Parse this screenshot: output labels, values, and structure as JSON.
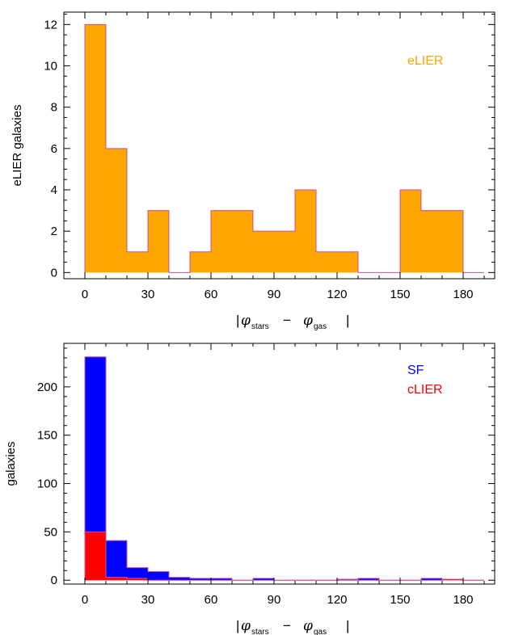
{
  "chart_data": [
    {
      "type": "bar",
      "title": "",
      "ylabel": "eLIER galaxies",
      "xlabel": {
        "bar_left": "|",
        "phi1": "φ",
        "sub1": "stars",
        "minus": "−",
        "phi2": "φ",
        "sub2": "gas",
        "bar_right": "|"
      },
      "xlim": [
        -10,
        195
      ],
      "ylim": [
        -0.3,
        12.6
      ],
      "xticks": [
        0,
        30,
        60,
        90,
        120,
        150,
        180
      ],
      "yticks": [
        0,
        2,
        4,
        6,
        8,
        10,
        12
      ],
      "bin_edges": [
        0,
        10,
        20,
        30,
        40,
        50,
        60,
        70,
        80,
        90,
        100,
        110,
        120,
        130,
        140,
        150,
        160,
        170,
        180,
        190
      ],
      "legend_position": "top-right",
      "series": [
        {
          "name": "eLIER",
          "fill": "#FFA500",
          "stroke": "#C8509A",
          "values": [
            12,
            6,
            1,
            3,
            0,
            1,
            3,
            3,
            2,
            2,
            4,
            1,
            1,
            0,
            0,
            4,
            3,
            3,
            0
          ]
        }
      ]
    },
    {
      "type": "bar",
      "title": "",
      "ylabel": "galaxies",
      "xlabel": {
        "bar_left": "|",
        "phi1": "φ",
        "sub1": "stars",
        "minus": "−",
        "phi2": "φ",
        "sub2": "gas",
        "bar_right": "|"
      },
      "xlim": [
        -10,
        195
      ],
      "ylim": [
        -4,
        245
      ],
      "xticks": [
        0,
        30,
        60,
        90,
        120,
        150,
        180
      ],
      "yticks": [
        0,
        50,
        100,
        150,
        200
      ],
      "bin_edges": [
        0,
        10,
        20,
        30,
        40,
        50,
        60,
        70,
        80,
        90,
        100,
        110,
        120,
        130,
        140,
        150,
        160,
        170,
        180,
        190
      ],
      "legend_position": "top-right",
      "series": [
        {
          "name": "SF",
          "fill": "#0000FF",
          "stroke": "#C8509A",
          "values": [
            231,
            41,
            13,
            9,
            3,
            2,
            2,
            0,
            2,
            0,
            0,
            0,
            1,
            2,
            0,
            0,
            2,
            1,
            0
          ]
        },
        {
          "name": "cLIER",
          "fill": "#FF0000",
          "stroke": "#C8509A",
          "values": [
            50,
            3,
            2,
            0,
            0,
            0,
            0,
            0,
            0,
            0,
            0,
            0,
            0,
            0,
            0,
            0,
            0,
            1,
            0
          ]
        }
      ]
    }
  ]
}
